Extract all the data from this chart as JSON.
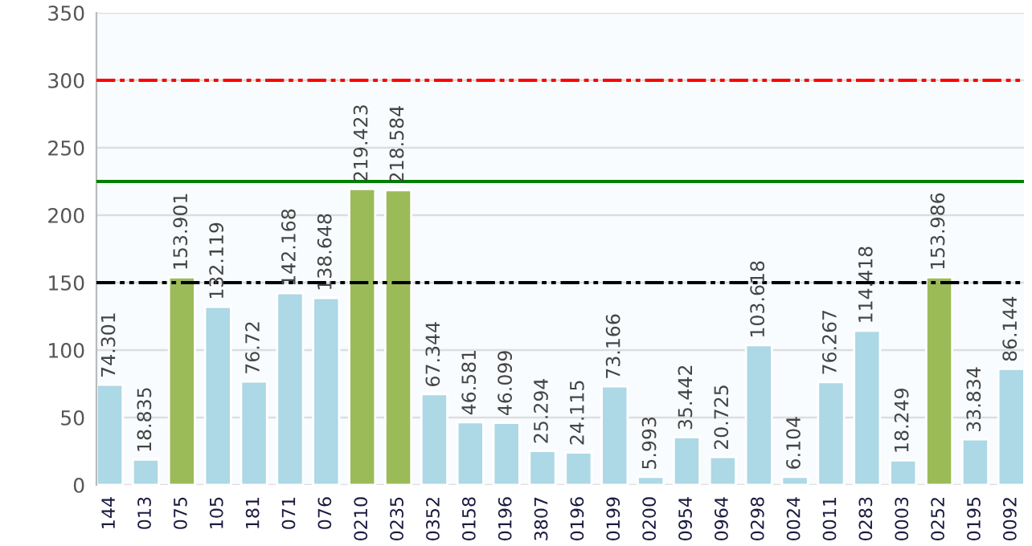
{
  "chart_data": {
    "type": "bar",
    "categories": [
      "144",
      "013",
      "075",
      "105",
      "181",
      "071",
      "076",
      "0210",
      "0235",
      "0352",
      "0158",
      "0196",
      "3807",
      "0196",
      "0199",
      "0200",
      "0954",
      "0964",
      "0298",
      "0024",
      "0011",
      "0283",
      "0003",
      "0252",
      "0195",
      "0092"
    ],
    "values": [
      74.301,
      18.835,
      153.901,
      132.119,
      76.72,
      142.168,
      138.648,
      219.423,
      218.584,
      67.344,
      46.581,
      46.099,
      25.294,
      24.115,
      73.166,
      5.993,
      35.442,
      20.725,
      103.618,
      6.104,
      76.267,
      114.418,
      18.249,
      153.986,
      33.834,
      86.144
    ],
    "colors": [
      "#add8e6",
      "#add8e6",
      "#9bbb59",
      "#add8e6",
      "#add8e6",
      "#add8e6",
      "#add8e6",
      "#9bbb59",
      "#9bbb59",
      "#add8e6",
      "#add8e6",
      "#add8e6",
      "#add8e6",
      "#add8e6",
      "#add8e6",
      "#add8e6",
      "#add8e6",
      "#add8e6",
      "#add8e6",
      "#add8e6",
      "#add8e6",
      "#add8e6",
      "#add8e6",
      "#9bbb59",
      "#add8e6",
      "#add8e6"
    ],
    "ylim": [
      0,
      350
    ],
    "yticks": [
      0,
      50,
      100,
      150,
      200,
      250,
      300,
      350
    ],
    "grid": "y",
    "data_labels": true,
    "ref_lines": [
      {
        "axis": "y",
        "value": 300,
        "color": "#ff0000",
        "line_style": "dashdotdot"
      },
      {
        "axis": "y",
        "value": 225,
        "color": "#008000",
        "line_style": "solid"
      },
      {
        "axis": "y",
        "value": 150,
        "color": "#000000",
        "line_style": "dashdotdot"
      }
    ]
  }
}
